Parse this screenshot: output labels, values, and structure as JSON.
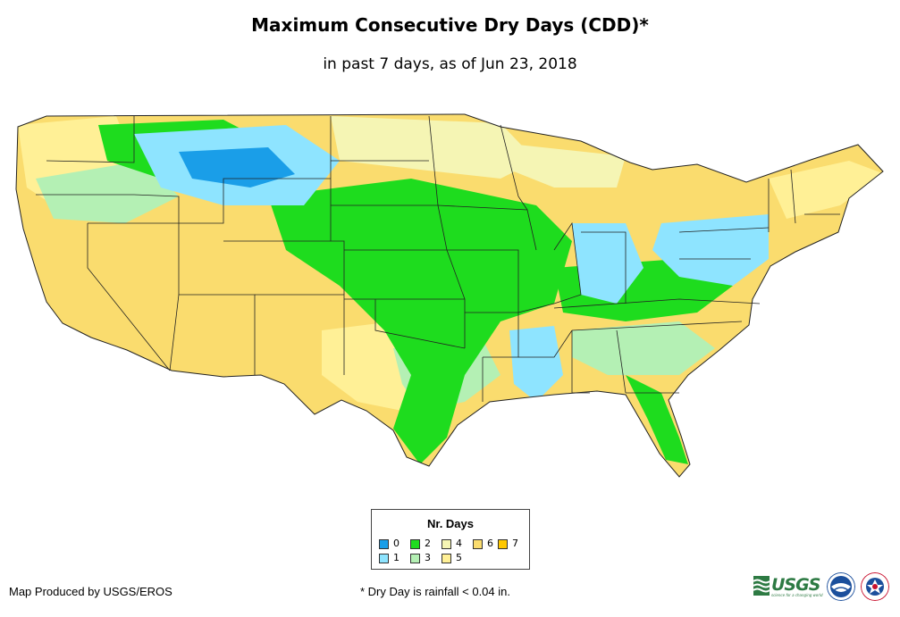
{
  "title": "Maximum Consecutive Dry Days (CDD)*",
  "subtitle": "in past 7 days, as of Jun 23, 2018",
  "legend": {
    "title": "Nr. Days",
    "items": [
      {
        "label": "0",
        "color": "#1a9ee8"
      },
      {
        "label": "1",
        "color": "#8ee4ff"
      },
      {
        "label": "2",
        "color": "#1edc1e"
      },
      {
        "label": "3",
        "color": "#b4f0b4"
      },
      {
        "label": "4",
        "color": "#f5f5b4"
      },
      {
        "label": "5",
        "color": "#fff096"
      },
      {
        "label": "6",
        "color": "#fadc6e"
      },
      {
        "label": "7",
        "color": "#ffc800"
      }
    ]
  },
  "credit": "Map Produced by USGS/EROS",
  "footnote": "* Dry Day is rainfall < 0.04 in.",
  "logos": {
    "usgs": "USGS",
    "usgs_tagline": "science for a changing world"
  }
}
